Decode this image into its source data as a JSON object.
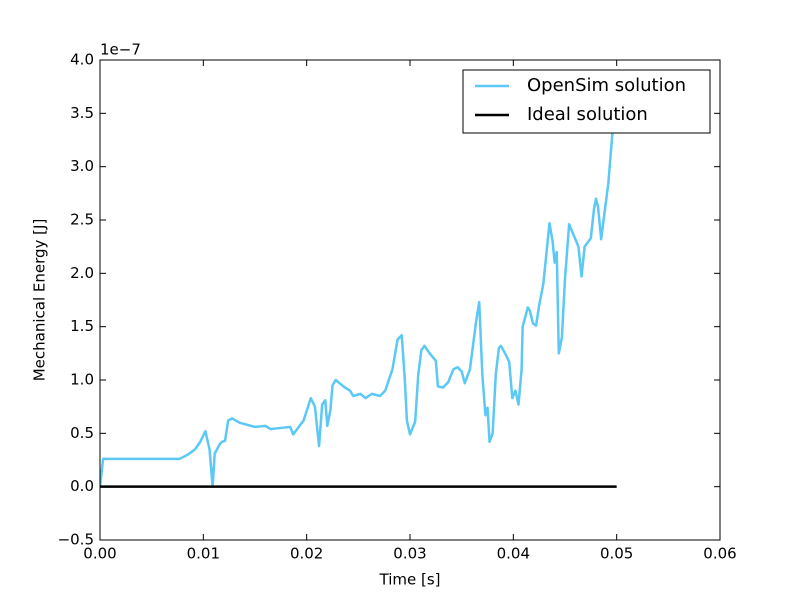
{
  "chart_data": {
    "type": "line",
    "xlabel": "Time [s]",
    "ylabel": "Mechanical Energy [J]",
    "y_offset_label": "1e−7",
    "xlim": [
      0,
      0.06
    ],
    "ylim": [
      -0.5,
      4.0
    ],
    "xticks": [
      {
        "value": 0,
        "label": "0.00"
      },
      0.01,
      0.02,
      0.03,
      0.04,
      0.05,
      0.06
    ],
    "yticks": [
      {
        "value": -0.5,
        "label": "−0.5"
      },
      {
        "value": 0,
        "label": "0.0"
      },
      0.5,
      {
        "value": 1,
        "label": "1.0"
      },
      1.5,
      {
        "value": 2,
        "label": "2.0"
      },
      2.5,
      {
        "value": 3,
        "label": "3.0"
      },
      3.5,
      {
        "value": 4,
        "label": "4.0"
      }
    ],
    "grid": false,
    "legend": "upper right",
    "series": [
      {
        "name": "OpenSim solution",
        "color": "#5bc8f5",
        "x": [
          0,
          0.0003,
          0.0077,
          0.0085,
          0.0092,
          0.0097,
          0.0102,
          0.0106,
          0.0109,
          0.0111,
          0.0116,
          0.0118,
          0.0121,
          0.0124,
          0.0128,
          0.0135,
          0.015,
          0.016,
          0.0165,
          0.0184,
          0.0187,
          0.0197,
          0.0204,
          0.0208,
          0.0212,
          0.0215,
          0.0218,
          0.022,
          0.0223,
          0.0225,
          0.0228,
          0.0237,
          0.0242,
          0.0245,
          0.0252,
          0.0257,
          0.0263,
          0.0271,
          0.0276,
          0.0283,
          0.0288,
          0.0292,
          0.0295,
          0.0297,
          0.03,
          0.0305,
          0.0308,
          0.0311,
          0.0314,
          0.0319,
          0.0325,
          0.0327,
          0.0332,
          0.0337,
          0.0342,
          0.0346,
          0.035,
          0.0353,
          0.0358,
          0.0364,
          0.0367,
          0.037,
          0.0373,
          0.0375,
          0.0377,
          0.038,
          0.0383,
          0.0386,
          0.0388,
          0.0392,
          0.0396,
          0.0399,
          0.0402,
          0.0405,
          0.0408,
          0.0409,
          0.0414,
          0.0416,
          0.0419,
          0.0422,
          0.0425,
          0.0429,
          0.0435,
          0.0438,
          0.044,
          0.0442,
          0.0444,
          0.0447,
          0.045,
          0.0454,
          0.0463,
          0.0466,
          0.0469,
          0.0475,
          0.0478,
          0.048,
          0.0482,
          0.0485,
          0.0488,
          0.0492,
          0.0497
        ],
        "values": [
          0.0,
          0.26,
          0.26,
          0.3,
          0.35,
          0.42,
          0.52,
          0.35,
          0.0,
          0.31,
          0.4,
          0.42,
          0.43,
          0.62,
          0.64,
          0.6,
          0.56,
          0.57,
          0.54,
          0.56,
          0.49,
          0.62,
          0.83,
          0.75,
          0.38,
          0.77,
          0.81,
          0.57,
          0.72,
          0.95,
          1.0,
          0.93,
          0.9,
          0.85,
          0.87,
          0.83,
          0.87,
          0.85,
          0.9,
          1.1,
          1.38,
          1.42,
          1.0,
          0.62,
          0.49,
          0.61,
          1.05,
          1.28,
          1.32,
          1.25,
          1.18,
          0.94,
          0.93,
          0.98,
          1.1,
          1.12,
          1.08,
          0.97,
          1.1,
          1.55,
          1.73,
          1.05,
          0.67,
          0.74,
          0.42,
          0.5,
          1.05,
          1.3,
          1.32,
          1.25,
          1.17,
          0.83,
          0.9,
          0.77,
          1.1,
          1.5,
          1.68,
          1.65,
          1.53,
          1.51,
          1.7,
          1.9,
          2.47,
          2.3,
          2.1,
          2.2,
          1.25,
          1.4,
          1.95,
          2.46,
          2.25,
          1.97,
          2.25,
          2.33,
          2.6,
          2.7,
          2.62,
          2.32,
          2.55,
          2.85,
          3.45
        ]
      },
      {
        "name": "Ideal solution",
        "color": "#000000",
        "x": [
          0,
          0.05
        ],
        "values": [
          0,
          0
        ]
      }
    ]
  }
}
